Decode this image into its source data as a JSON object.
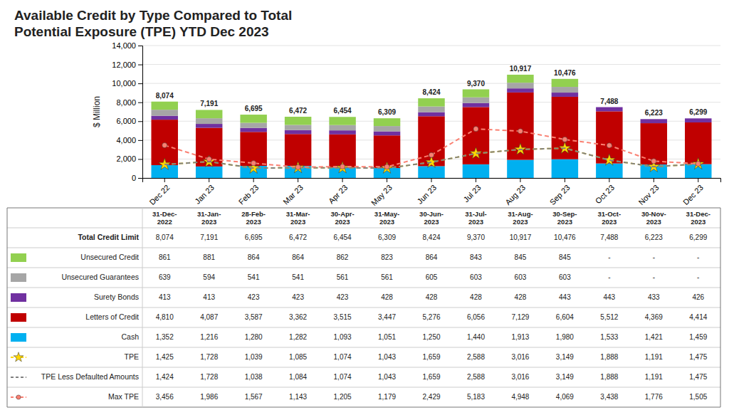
{
  "chart_data": {
    "type": "bar",
    "title": "Available Credit by Type Compared to Total\nPotential Exposure (TPE) YTD Dec 2023",
    "categories": [
      "Dec 22",
      "Jan 23",
      "Feb 23",
      "Mar 23",
      "Apr 23",
      "May 23",
      "Jun 23",
      "Jul 23",
      "Aug 23",
      "Sep 23",
      "Oct 23",
      "Nov 23",
      "Dec 23"
    ],
    "table_columns": [
      "31-Dec-\n2022",
      "31-Jan-\n2023",
      "28-Feb-\n2023",
      "31-Mar-\n2023",
      "30-Apr-\n2023",
      "31-May-\n2023",
      "30-Jun-\n2023",
      "31-Jul-\n2023",
      "31-Aug-\n2023",
      "30-Sep-\n2023",
      "31-Oct-\n2023",
      "30-Nov-\n2023",
      "31-Dec-\n2023"
    ],
    "ylabel": "$ Million",
    "ylim": [
      0,
      14000
    ],
    "yticks": [
      0,
      {
        "value": 2000,
        "label": "2,000"
      },
      {
        "value": 4000,
        "label": "4,000"
      },
      {
        "value": 6000,
        "label": "6,000"
      },
      {
        "value": 8000,
        "label": "8,000"
      },
      {
        "value": 10000,
        "label": "10,000"
      },
      {
        "value": 12000,
        "label": "12,000"
      },
      {
        "value": 14000,
        "label": "14,000"
      }
    ],
    "grid": true,
    "stacked": true,
    "series": [
      {
        "name": "Total Credit Limit",
        "type": "label",
        "values": [
          8074,
          7191,
          6695,
          6472,
          6454,
          6309,
          8424,
          9370,
          10917,
          10476,
          7488,
          6223,
          6299
        ],
        "value_labels": [
          "8,074",
          "7,191",
          "6,695",
          "6,472",
          "6,454",
          "6,309",
          "8,424",
          "9,370",
          "10,917",
          "10,476",
          "7,488",
          "6,223",
          "6,299"
        ]
      },
      {
        "name": "Unsecured Credit",
        "type": "bar",
        "color": "#92D050",
        "values": [
          861,
          881,
          864,
          864,
          862,
          823,
          864,
          843,
          845,
          845,
          null,
          null,
          null
        ],
        "value_labels": [
          "861",
          "881",
          "864",
          "864",
          "862",
          "823",
          "864",
          "843",
          "845",
          "845",
          "-",
          "-",
          "-"
        ]
      },
      {
        "name": "Unsecured Guarantees",
        "type": "bar",
        "color": "#A6A6A6",
        "values": [
          639,
          594,
          541,
          541,
          561,
          561,
          605,
          603,
          603,
          603,
          null,
          null,
          null
        ],
        "value_labels": [
          "639",
          "594",
          "541",
          "541",
          "561",
          "561",
          "605",
          "603",
          "603",
          "603",
          "-",
          "-",
          "-"
        ]
      },
      {
        "name": "Surety Bonds",
        "type": "bar",
        "color": "#7030A0",
        "values": [
          413,
          413,
          423,
          423,
          423,
          428,
          428,
          428,
          428,
          443,
          443,
          433,
          426
        ],
        "value_labels": [
          "413",
          "413",
          "423",
          "423",
          "423",
          "428",
          "428",
          "428",
          "428",
          "443",
          "443",
          "433",
          "426"
        ]
      },
      {
        "name": "Letters of Credit",
        "type": "bar",
        "color": "#C00000",
        "values": [
          4810,
          4087,
          3587,
          3362,
          3515,
          3447,
          5276,
          6056,
          7129,
          6604,
          5512,
          4369,
          4414
        ],
        "value_labels": [
          "4,810",
          "4,087",
          "3,587",
          "3,362",
          "3,515",
          "3,447",
          "5,276",
          "6,056",
          "7,129",
          "6,604",
          "5,512",
          "4,369",
          "4,414"
        ]
      },
      {
        "name": "Cash",
        "type": "bar",
        "color": "#00B0F0",
        "values": [
          1352,
          1216,
          1280,
          1282,
          1093,
          1051,
          1250,
          1440,
          1913,
          1980,
          1533,
          1421,
          1459
        ],
        "value_labels": [
          "1,352",
          "1,216",
          "1,280",
          "1,282",
          "1,093",
          "1,051",
          "1,250",
          "1,440",
          "1,913",
          "1,980",
          "1,533",
          "1,421",
          "1,459"
        ]
      },
      {
        "name": "TPE",
        "type": "line",
        "color": "#FFD700",
        "line_style": "dashed",
        "marker": "star",
        "values": [
          1425,
          1728,
          1039,
          1085,
          1074,
          1043,
          1659,
          2588,
          3016,
          3149,
          1888,
          1191,
          1475
        ],
        "value_labels": [
          "1,425",
          "1,728",
          "1,039",
          "1,085",
          "1,074",
          "1,043",
          "1,659",
          "2,588",
          "3,016",
          "3,149",
          "1,888",
          "1,191",
          "1,475"
        ]
      },
      {
        "name": "TPE Less Defaulted Amounts",
        "type": "line",
        "color": "#808080",
        "line_style": "dashed",
        "values": [
          1424,
          1728,
          1038,
          1084,
          1074,
          1043,
          1659,
          2588,
          3016,
          3149,
          1888,
          1191,
          1475
        ],
        "value_labels": [
          "1,424",
          "1,728",
          "1,038",
          "1,084",
          "1,074",
          "1,043",
          "1,659",
          "2,588",
          "3,016",
          "3,149",
          "1,888",
          "1,191",
          "1,475"
        ]
      },
      {
        "name": "Max TPE",
        "type": "line",
        "color": "#FA8072",
        "line_style": "dashed",
        "marker": "circle",
        "values": [
          3456,
          1986,
          1567,
          1143,
          1205,
          1179,
          2429,
          5183,
          4948,
          4069,
          3438,
          1776,
          1505
        ],
        "value_labels": [
          "3,456",
          "1,986",
          "1,567",
          "1,143",
          "1,205",
          "1,179",
          "2,429",
          "5,183",
          "4,948",
          "4,069",
          "3,438",
          "1,776",
          "1,505"
        ]
      }
    ]
  }
}
